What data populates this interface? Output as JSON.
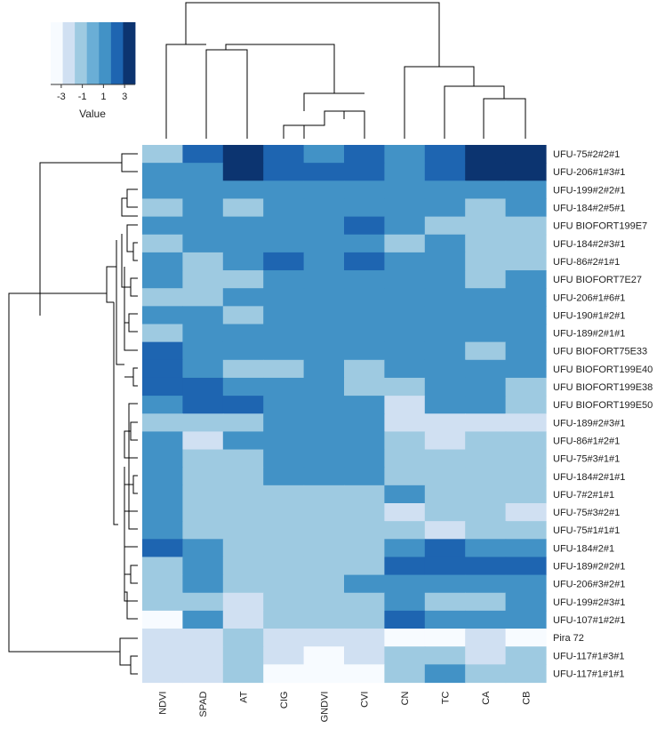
{
  "chart_data": {
    "type": "heatmap",
    "title": "",
    "legend": {
      "title": "Value",
      "ticks": [
        "-3",
        "-1",
        "1",
        "3"
      ],
      "tick_values": [
        -3,
        -1,
        1,
        3
      ],
      "range": [
        -4,
        4
      ],
      "placement": "top-left"
    },
    "colors": [
      "#f7fbff",
      "#d0e0f2",
      "#9ecae1",
      "#6aaed6",
      "#4292c6",
      "#1e65b1",
      "#0c3470"
    ],
    "columns": [
      "NDVI",
      "SPAD",
      "AT",
      "CIG",
      "GNDVI",
      "CVI",
      "CN",
      "TC",
      "CA",
      "CB"
    ],
    "rows": [
      "UFU-75#2#2#1",
      "UFU-206#1#3#1",
      "UFU-199#2#2#1",
      "UFU-184#2#5#1",
      "UFU BIOFORT199E7",
      "UFU-184#2#3#1",
      "UFU-86#2#1#1",
      "UFU BIOFORT7E27",
      "UFU-206#1#6#1",
      "UFU-190#1#2#1",
      "UFU-189#2#1#1",
      "UFU BIOFORT75E33",
      "UFU BIOFORT199E40",
      "UFU BIOFORT199E38",
      "UFU BIOFORT199E50",
      "UFU-189#2#3#1",
      "UFU-86#1#2#1",
      "UFU-75#3#1#1",
      "UFU-184#2#1#1",
      "UFU-7#2#1#1",
      "UFU-75#3#2#1",
      "UFU-75#1#1#1",
      "UFU-184#2#1",
      "UFU-189#2#2#1",
      "UFU-206#3#2#1",
      "UFU-199#2#3#1",
      "UFU-107#1#2#1",
      "Pira 72",
      "UFU-117#1#3#1",
      "UFU-117#1#1#1"
    ],
    "values": [
      [
        -1,
        2,
        3,
        2,
        1,
        2,
        1,
        2,
        3,
        3
      ],
      [
        1,
        1,
        3,
        2,
        2,
        2,
        1,
        2,
        3,
        3
      ],
      [
        1,
        1,
        1,
        1,
        1,
        1,
        1,
        1,
        1,
        1
      ],
      [
        -1,
        1,
        -1,
        1,
        1,
        1,
        1,
        1,
        -1,
        1
      ],
      [
        1,
        1,
        1,
        1,
        1,
        2,
        1,
        -1,
        -1,
        -1
      ],
      [
        -1,
        1,
        1,
        1,
        1,
        1,
        -1,
        1,
        -1,
        -1
      ],
      [
        1,
        -1,
        1,
        2,
        1,
        2,
        1,
        1,
        -1,
        -1
      ],
      [
        1,
        -1,
        -1,
        1,
        1,
        1,
        1,
        1,
        -1,
        1
      ],
      [
        -1,
        -1,
        1,
        1,
        1,
        1,
        1,
        1,
        1,
        1
      ],
      [
        1,
        1,
        -1,
        1,
        1,
        1,
        1,
        1,
        1,
        1
      ],
      [
        -1,
        1,
        1,
        1,
        1,
        1,
        1,
        1,
        1,
        1
      ],
      [
        2,
        1,
        1,
        1,
        1,
        1,
        1,
        1,
        -1,
        1
      ],
      [
        2,
        1,
        -1,
        -1,
        1,
        -1,
        1,
        1,
        1,
        1
      ],
      [
        2,
        2,
        1,
        1,
        1,
        -1,
        -1,
        1,
        1,
        -1
      ],
      [
        1,
        2,
        2,
        1,
        1,
        1,
        -2,
        1,
        1,
        -1
      ],
      [
        -1,
        -1,
        -1,
        1,
        1,
        1,
        -2,
        -2,
        -2,
        -2
      ],
      [
        1,
        -2,
        1,
        1,
        1,
        1,
        -1,
        -2,
        -1,
        -1
      ],
      [
        1,
        -1,
        -1,
        1,
        1,
        1,
        -1,
        -1,
        -1,
        -1
      ],
      [
        1,
        -1,
        -1,
        1,
        1,
        1,
        -1,
        -1,
        -1,
        -1
      ],
      [
        1,
        -1,
        -1,
        -1,
        -1,
        -1,
        1,
        -1,
        -1,
        -1
      ],
      [
        1,
        -1,
        -1,
        -1,
        -1,
        -1,
        -2,
        -1,
        -1,
        -2
      ],
      [
        1,
        -1,
        -1,
        -1,
        -1,
        -1,
        -1,
        -2,
        -1,
        -1
      ],
      [
        2,
        1,
        -1,
        -1,
        -1,
        -1,
        1,
        2,
        1,
        1
      ],
      [
        -1,
        1,
        -1,
        -1,
        -1,
        -1,
        2,
        2,
        2,
        2
      ],
      [
        -1,
        1,
        -1,
        -1,
        -1,
        1,
        1,
        1,
        1,
        1
      ],
      [
        -1,
        -1,
        -2,
        -1,
        -1,
        -1,
        1,
        -1,
        -1,
        1
      ],
      [
        -3,
        1,
        -2,
        -1,
        -1,
        -1,
        2,
        1,
        1,
        1
      ],
      [
        -2,
        -2,
        -1,
        -2,
        -2,
        -2,
        -3,
        -3,
        -2,
        -3
      ],
      [
        -2,
        -2,
        -1,
        -2,
        -3,
        -2,
        -1,
        -1,
        -2,
        -1
      ],
      [
        -2,
        -2,
        -1,
        -3,
        -3,
        -3,
        -1,
        1,
        -1,
        -1
      ]
    ]
  }
}
